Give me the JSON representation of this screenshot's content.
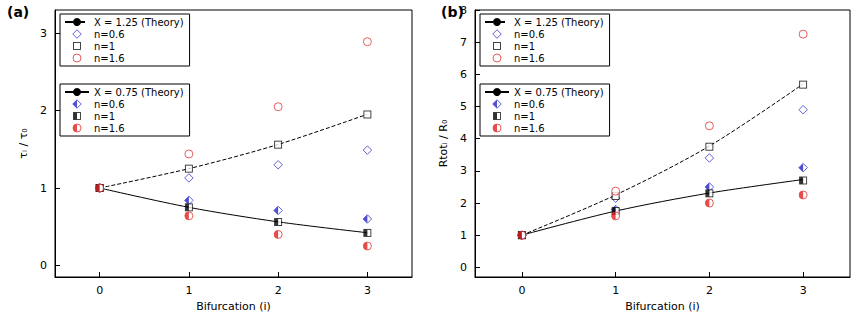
{
  "chart_data": [
    {
      "type": "scatter",
      "title": "(a)",
      "x_label": "Bifurcation (i)",
      "y_label": "τᵢ / τ₀",
      "xlim": [
        -0.5,
        3.5
      ],
      "xticks": [
        0,
        1,
        2,
        3
      ],
      "ylim": [
        -0.15,
        3.3
      ],
      "yticks": [
        0,
        1,
        2,
        3
      ],
      "grid": false,
      "legend": "upper left",
      "x": [
        0,
        1,
        2,
        3
      ],
      "series": [
        {
          "name": "X = 1.25 (Theory)",
          "type": "line",
          "color": "#000000",
          "marker": "none",
          "line_style": "dashed",
          "values": [
            1,
            1.25,
            1.5625,
            1.953
          ]
        },
        {
          "name": "n=0.6",
          "type": "scatter",
          "color": "#2323c8",
          "marker": "open_diamond",
          "values": [
            1,
            1.13,
            1.3,
            1.49
          ]
        },
        {
          "name": "n=1",
          "type": "scatter",
          "color": "#000000",
          "marker": "open_square",
          "values": [
            1,
            1.25,
            1.56,
            1.95
          ]
        },
        {
          "name": "n=1.6",
          "type": "scatter",
          "color": "#e02020",
          "marker": "open_circle",
          "values": [
            1,
            1.44,
            2.05,
            2.89
          ]
        },
        {
          "name": "X = 0.75 (Theory)",
          "type": "line",
          "color": "#000000",
          "marker": "none",
          "line_style": "solid",
          "values": [
            1,
            0.75,
            0.5625,
            0.4219
          ]
        },
        {
          "name": "n=0.6",
          "type": "scatter",
          "color": "#2323c8",
          "marker": "half_filled_diamond",
          "values": [
            1,
            0.84,
            0.71,
            0.6
          ]
        },
        {
          "name": "n=1",
          "type": "scatter",
          "color": "#000000",
          "marker": "half_filled_square",
          "values": [
            1,
            0.75,
            0.56,
            0.42
          ]
        },
        {
          "name": "n=1.6",
          "type": "scatter",
          "color": "#e02020",
          "marker": "half_filled_circle",
          "values": [
            1,
            0.64,
            0.4,
            0.25
          ]
        }
      ]
    },
    {
      "type": "scatter",
      "title": "(b)",
      "x_label": "Bifurcation (i)",
      "y_label": "Rtotᵢ / R₀",
      "xlim": [
        -0.5,
        3.5
      ],
      "xticks": [
        0,
        1,
        2,
        3
      ],
      "ylim": [
        -0.3,
        8
      ],
      "yticks": [
        0,
        1,
        2,
        3,
        4,
        5,
        6,
        7,
        8
      ],
      "grid": false,
      "legend": "upper left",
      "x": [
        0,
        1,
        2,
        3
      ],
      "series": [
        {
          "name": "X = 1.25 (Theory)",
          "type": "line",
          "color": "#000000",
          "marker": "none",
          "line_style": "dashed",
          "values": [
            1,
            2.25,
            3.77,
            5.7
          ]
        },
        {
          "name": "n=0.6",
          "type": "scatter",
          "color": "#2323c8",
          "marker": "open_diamond",
          "values": [
            1,
            2.15,
            3.4,
            4.9
          ]
        },
        {
          "name": "n=1",
          "type": "scatter",
          "color": "#000000",
          "marker": "open_square",
          "values": [
            1,
            2.22,
            3.75,
            5.68
          ]
        },
        {
          "name": "n=1.6",
          "type": "scatter",
          "color": "#e02020",
          "marker": "open_circle",
          "values": [
            1,
            2.37,
            4.4,
            7.25
          ]
        },
        {
          "name": "X = 0.75 (Theory)",
          "type": "line",
          "color": "#000000",
          "marker": "none",
          "line_style": "solid",
          "values": [
            1,
            1.75,
            2.31,
            2.73
          ]
        },
        {
          "name": "n=0.6",
          "type": "scatter",
          "color": "#2323c8",
          "marker": "half_filled_diamond",
          "values": [
            1,
            1.8,
            2.5,
            3.1
          ]
        },
        {
          "name": "n=1",
          "type": "scatter",
          "color": "#000000",
          "marker": "half_filled_square",
          "values": [
            1,
            1.75,
            2.3,
            2.7
          ]
        },
        {
          "name": "n=1.6",
          "type": "scatter",
          "color": "#e02020",
          "marker": "half_filled_circle",
          "values": [
            1,
            1.6,
            2.0,
            2.25
          ]
        }
      ]
    }
  ]
}
